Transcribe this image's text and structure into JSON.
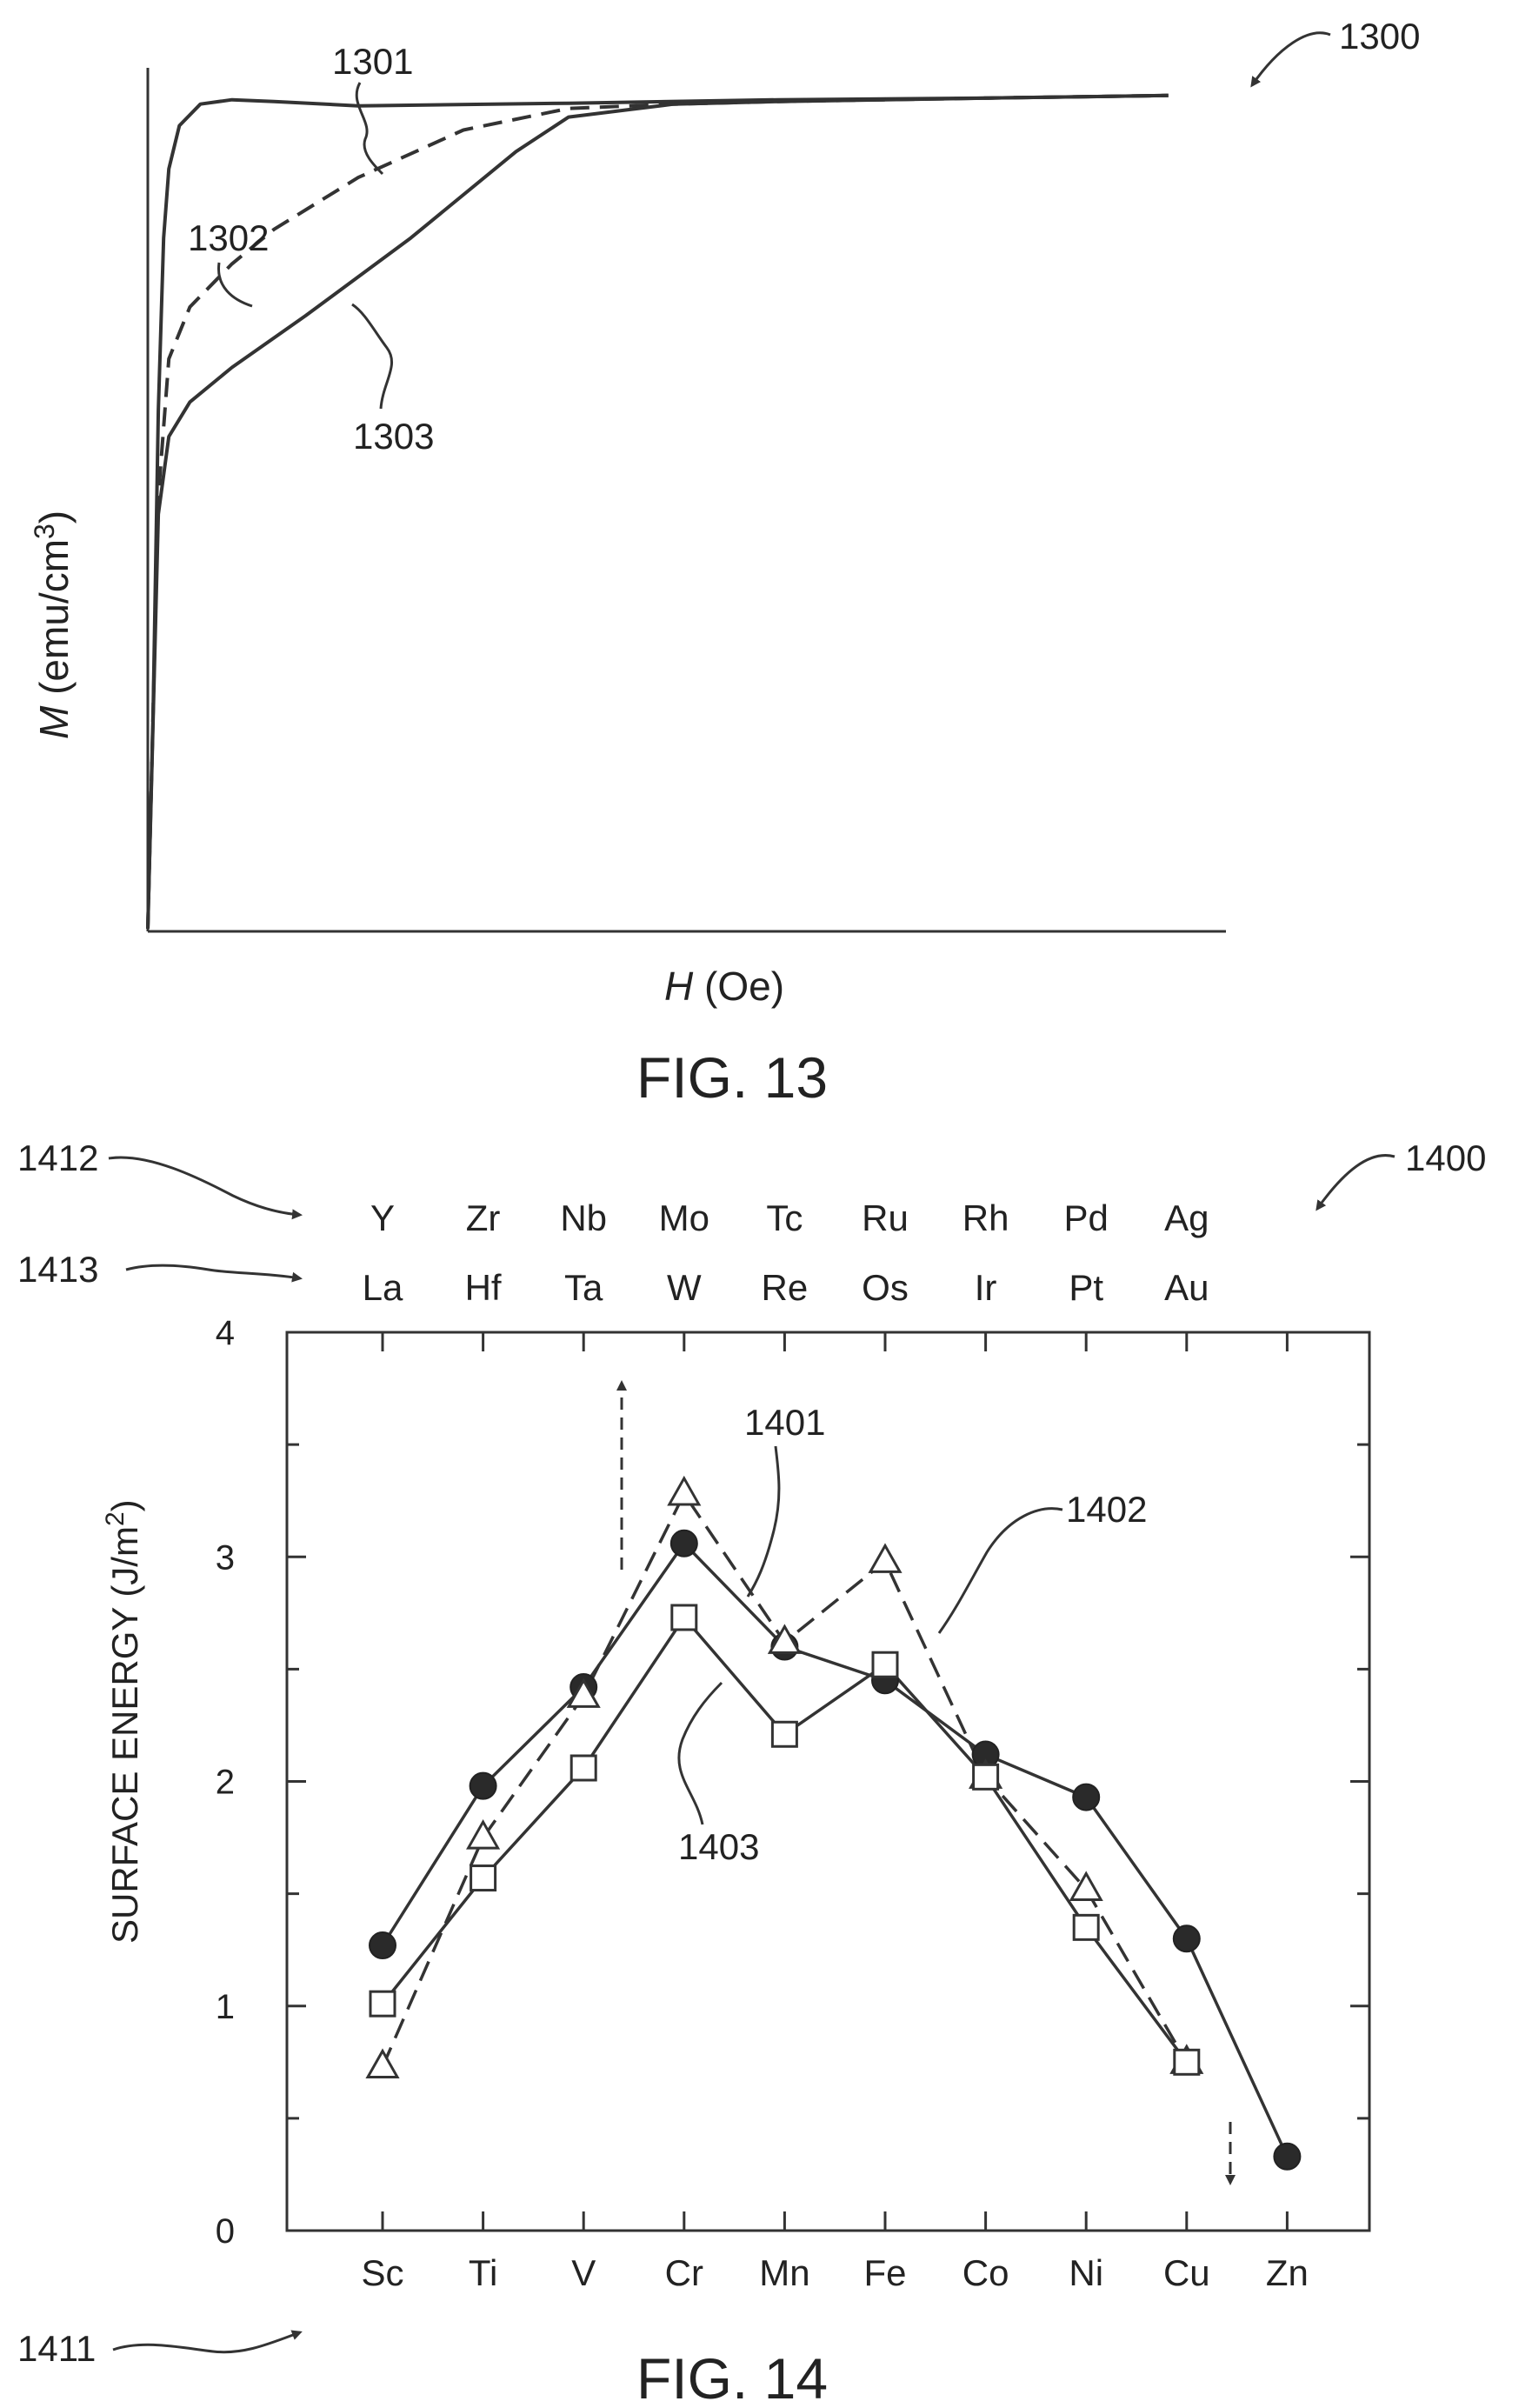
{
  "figure13": {
    "ref_number": "1300",
    "fig_label": "FIG. 13",
    "xlabel_var": "H",
    "xlabel_unit": " (Oe)",
    "ylabel_var": "M",
    "ylabel_unit": " (emu/cm",
    "ylabel_unit_sup": "3",
    "ylabel_unit_close": ")",
    "curve_labels": [
      "1301",
      "1302",
      "1303"
    ]
  },
  "figure14": {
    "ref_number": "1400",
    "fig_label": "FIG. 14",
    "row_refs": {
      "bottom": "1411",
      "top": "1412",
      "middle": "1413"
    },
    "curve_labels": [
      "1401",
      "1402",
      "1403"
    ]
  },
  "chart_data": [
    {
      "type": "line",
      "title": "",
      "xlabel": "H (Oe)",
      "ylabel": "M (emu/cm3)",
      "grid": false,
      "note": "Magnetization curves without numeric scale; values normalized 0-1 in axis units",
      "series": [
        {
          "name": "1301",
          "style": "solid",
          "x": [
            0,
            0.005,
            0.01,
            0.015,
            0.02,
            0.03,
            0.05,
            0.08,
            0.12,
            0.2,
            0.4,
            0.6,
            0.8,
            0.97
          ],
          "y": [
            0,
            0.25,
            0.6,
            0.8,
            0.88,
            0.93,
            0.955,
            0.96,
            0.958,
            0.953,
            0.956,
            0.96,
            0.962,
            0.965
          ]
        },
        {
          "name": "1302",
          "style": "dashed",
          "x": [
            0,
            0.01,
            0.02,
            0.04,
            0.08,
            0.12,
            0.2,
            0.3,
            0.4,
            0.5,
            0.6,
            0.8,
            0.97
          ],
          "y": [
            0,
            0.5,
            0.66,
            0.72,
            0.77,
            0.81,
            0.87,
            0.925,
            0.95,
            0.955,
            0.958,
            0.962,
            0.965
          ]
        },
        {
          "name": "1303",
          "style": "solid",
          "x": [
            0,
            0.01,
            0.02,
            0.04,
            0.08,
            0.15,
            0.25,
            0.35,
            0.4,
            0.5,
            0.6,
            0.8,
            0.97
          ],
          "y": [
            0,
            0.48,
            0.57,
            0.61,
            0.65,
            0.71,
            0.8,
            0.9,
            0.94,
            0.955,
            0.958,
            0.962,
            0.965
          ]
        }
      ]
    },
    {
      "type": "line",
      "title": "",
      "xlabel": "",
      "ylabel": "SURFACE ENERGY (J/m2)",
      "ylim": [
        0,
        4
      ],
      "yticks": [
        0,
        1,
        2,
        3,
        4
      ],
      "grid": false,
      "categories": [
        "Sc",
        "Ti",
        "V",
        "Cr",
        "Mn",
        "Fe",
        "Co",
        "Ni",
        "Cu",
        "Zn"
      ],
      "top_categories_row1": [
        "Y",
        "Zr",
        "Nb",
        "Mo",
        "Tc",
        "Ru",
        "Rh",
        "Pd",
        "Ag"
      ],
      "top_categories_row2": [
        "La",
        "Hf",
        "Ta",
        "W",
        "Re",
        "Os",
        "Ir",
        "Pt",
        "Au"
      ],
      "series": [
        {
          "name": "1401",
          "marker": "filled-circle",
          "style": "solid",
          "values": [
            1.27,
            1.98,
            2.42,
            3.06,
            2.6,
            2.45,
            2.12,
            1.93,
            1.3,
            0.33
          ]
        },
        {
          "name": "1402",
          "marker": "open-triangle",
          "style": "dashed",
          "values": [
            0.73,
            1.75,
            2.38,
            3.28,
            2.62,
            2.98,
            2.02,
            1.52,
            0.75,
            null
          ]
        },
        {
          "name": "1403",
          "marker": "open-square",
          "style": "solid",
          "values": [
            1.01,
            1.57,
            2.06,
            2.73,
            2.21,
            2.52,
            2.02,
            1.35,
            0.75,
            null
          ]
        }
      ]
    }
  ]
}
